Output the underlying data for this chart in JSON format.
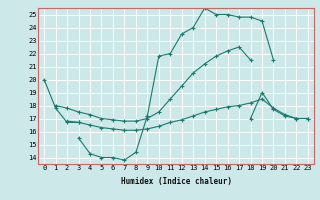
{
  "background_color": "#cde8e8",
  "grid_color": "#ffffff",
  "line_color": "#1a7a6e",
  "xlabel": "Humidex (Indice chaleur)",
  "xlim": [
    -0.5,
    23.5
  ],
  "ylim": [
    13.5,
    25.5
  ],
  "yticks": [
    14,
    15,
    16,
    17,
    18,
    19,
    20,
    21,
    22,
    23,
    24,
    25
  ],
  "xticks": [
    0,
    1,
    2,
    3,
    4,
    5,
    6,
    7,
    8,
    9,
    10,
    11,
    12,
    13,
    14,
    15,
    16,
    17,
    18,
    19,
    20,
    21,
    22,
    23
  ],
  "lines": [
    {
      "x": [
        0,
        1,
        2,
        3
      ],
      "y": [
        20.0,
        17.8,
        16.7,
        16.7
      ]
    },
    {
      "x": [
        3,
        4,
        5,
        6,
        7,
        8,
        9
      ],
      "y": [
        15.5,
        14.3,
        14.0,
        14.0,
        13.8,
        14.4,
        17.2
      ]
    },
    {
      "x": [
        2,
        3,
        4,
        5,
        6,
        7,
        8,
        9,
        10,
        11,
        12,
        13,
        14,
        15,
        16,
        17,
        18,
        19,
        20,
        21,
        22,
        23
      ],
      "y": [
        16.8,
        16.7,
        16.5,
        16.3,
        16.2,
        16.1,
        16.1,
        16.2,
        16.4,
        16.7,
        16.9,
        17.2,
        17.5,
        17.7,
        17.9,
        18.0,
        18.2,
        18.5,
        17.8,
        17.3,
        17.0,
        17.0
      ]
    },
    {
      "x": [
        1,
        2,
        3,
        4,
        5,
        6,
        7,
        8,
        9,
        10,
        11,
        12,
        13,
        14,
        15,
        16,
        17,
        18
      ],
      "y": [
        18.0,
        17.8,
        17.5,
        17.3,
        17.0,
        16.9,
        16.8,
        16.8,
        17.0,
        17.5,
        18.5,
        19.5,
        20.5,
        21.2,
        21.8,
        22.2,
        22.5,
        21.5
      ]
    },
    {
      "x": [
        9,
        10,
        11,
        12,
        13,
        14,
        15,
        16,
        17,
        18,
        19,
        20
      ],
      "y": [
        17.2,
        21.8,
        22.0,
        23.5,
        24.0,
        25.5,
        25.0,
        25.0,
        24.8,
        24.8,
        24.5,
        21.5
      ]
    },
    {
      "x": [
        18,
        19,
        20,
        21,
        22,
        23
      ],
      "y": [
        17.0,
        19.0,
        17.7,
        17.2,
        17.0,
        17.0
      ]
    }
  ]
}
